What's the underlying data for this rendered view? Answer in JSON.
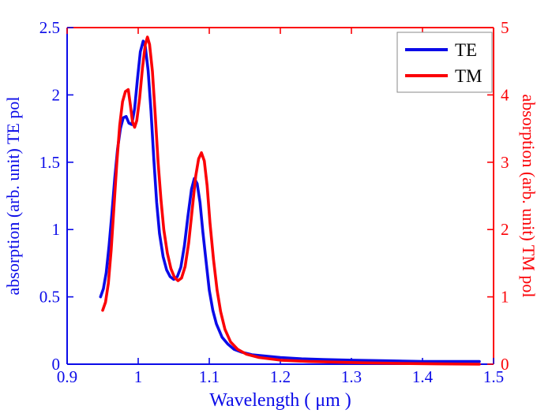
{
  "chart_data": {
    "type": "line",
    "title": "",
    "xlabel": "Wavelength ( μm )",
    "ylabel_left": "absorption (arb. unit) TE pol",
    "ylabel_right": "absorption (arb. unit) TM pol",
    "xlim": [
      0.9,
      1.5
    ],
    "ylim_left": [
      0,
      2.5
    ],
    "ylim_right": [
      0,
      5
    ],
    "x_tick_values": [
      0.9,
      1.0,
      1.1,
      1.2,
      1.3,
      1.4,
      1.5
    ],
    "x_tick_labels": [
      "0.9",
      "1",
      "1.1",
      "1.2",
      "1.3",
      "1.4",
      "1.5"
    ],
    "y_left_tick_values": [
      0,
      0.5,
      1,
      1.5,
      2,
      2.5
    ],
    "y_left_tick_labels": [
      "0",
      "0.5",
      "1",
      "1.5",
      "2",
      "2.5"
    ],
    "y_right_tick_values": [
      0,
      1,
      2,
      3,
      4,
      5
    ],
    "y_right_tick_labels": [
      "0",
      "1",
      "2",
      "3",
      "4",
      "5"
    ],
    "grid": false,
    "legend": {
      "position": "top-right",
      "entries": [
        {
          "label": "TE",
          "color": "#0b0be8"
        },
        {
          "label": "TM",
          "color": "#fb0207"
        }
      ]
    },
    "colors": {
      "left_axis": "#0b0be8",
      "right_axis": "#fb0207",
      "legend_text": "#000000",
      "legend_border": "#888888",
      "background": "#ffffff"
    },
    "series": [
      {
        "name": "TE",
        "axis": "left",
        "color": "#0b0be8",
        "points": [
          [
            0.947,
            0.5
          ],
          [
            0.951,
            0.56
          ],
          [
            0.955,
            0.68
          ],
          [
            0.959,
            0.88
          ],
          [
            0.963,
            1.12
          ],
          [
            0.967,
            1.38
          ],
          [
            0.971,
            1.6
          ],
          [
            0.975,
            1.75
          ],
          [
            0.979,
            1.83
          ],
          [
            0.983,
            1.84
          ],
          [
            0.987,
            1.79
          ],
          [
            0.991,
            1.78
          ],
          [
            0.995,
            1.9
          ],
          [
            0.999,
            2.12
          ],
          [
            1.003,
            2.32
          ],
          [
            1.007,
            2.4
          ],
          [
            1.01,
            2.36
          ],
          [
            1.014,
            2.18
          ],
          [
            1.018,
            1.88
          ],
          [
            1.022,
            1.52
          ],
          [
            1.026,
            1.2
          ],
          [
            1.03,
            0.97
          ],
          [
            1.035,
            0.8
          ],
          [
            1.04,
            0.7
          ],
          [
            1.045,
            0.65
          ],
          [
            1.05,
            0.63
          ],
          [
            1.055,
            0.65
          ],
          [
            1.06,
            0.72
          ],
          [
            1.065,
            0.88
          ],
          [
            1.07,
            1.1
          ],
          [
            1.075,
            1.3
          ],
          [
            1.079,
            1.38
          ],
          [
            1.083,
            1.34
          ],
          [
            1.087,
            1.2
          ],
          [
            1.091,
            0.98
          ],
          [
            1.096,
            0.74
          ],
          [
            1.1,
            0.55
          ],
          [
            1.105,
            0.4
          ],
          [
            1.11,
            0.3
          ],
          [
            1.118,
            0.2
          ],
          [
            1.126,
            0.15
          ],
          [
            1.135,
            0.11
          ],
          [
            1.145,
            0.09
          ],
          [
            1.16,
            0.07
          ],
          [
            1.18,
            0.06
          ],
          [
            1.2,
            0.05
          ],
          [
            1.23,
            0.04
          ],
          [
            1.26,
            0.035
          ],
          [
            1.3,
            0.03
          ],
          [
            1.35,
            0.025
          ],
          [
            1.4,
            0.02
          ],
          [
            1.45,
            0.02
          ],
          [
            1.48,
            0.02
          ]
        ]
      },
      {
        "name": "TM",
        "axis": "right",
        "color": "#fb0207",
        "points": [
          [
            0.95,
            0.8
          ],
          [
            0.954,
            0.92
          ],
          [
            0.958,
            1.2
          ],
          [
            0.962,
            1.7
          ],
          [
            0.966,
            2.35
          ],
          [
            0.97,
            3.0
          ],
          [
            0.974,
            3.55
          ],
          [
            0.978,
            3.9
          ],
          [
            0.982,
            4.05
          ],
          [
            0.986,
            4.08
          ],
          [
            0.989,
            3.85
          ],
          [
            0.992,
            3.6
          ],
          [
            0.995,
            3.52
          ],
          [
            0.998,
            3.62
          ],
          [
            1.002,
            3.95
          ],
          [
            1.006,
            4.4
          ],
          [
            1.01,
            4.75
          ],
          [
            1.013,
            4.86
          ],
          [
            1.016,
            4.75
          ],
          [
            1.02,
            4.35
          ],
          [
            1.024,
            3.7
          ],
          [
            1.028,
            3.0
          ],
          [
            1.032,
            2.45
          ],
          [
            1.036,
            2.0
          ],
          [
            1.041,
            1.65
          ],
          [
            1.046,
            1.42
          ],
          [
            1.051,
            1.29
          ],
          [
            1.056,
            1.24
          ],
          [
            1.061,
            1.28
          ],
          [
            1.066,
            1.45
          ],
          [
            1.071,
            1.8
          ],
          [
            1.076,
            2.3
          ],
          [
            1.081,
            2.8
          ],
          [
            1.085,
            3.05
          ],
          [
            1.089,
            3.14
          ],
          [
            1.093,
            3.02
          ],
          [
            1.097,
            2.65
          ],
          [
            1.101,
            2.1
          ],
          [
            1.106,
            1.55
          ],
          [
            1.111,
            1.1
          ],
          [
            1.116,
            0.78
          ],
          [
            1.122,
            0.52
          ],
          [
            1.13,
            0.33
          ],
          [
            1.14,
            0.22
          ],
          [
            1.152,
            0.15
          ],
          [
            1.17,
            0.1
          ],
          [
            1.2,
            0.06
          ],
          [
            1.24,
            0.04
          ],
          [
            1.28,
            0.03
          ],
          [
            1.32,
            0.02
          ],
          [
            1.37,
            0.01
          ],
          [
            1.42,
            0.005
          ],
          [
            1.48,
            0.0
          ]
        ]
      }
    ]
  }
}
